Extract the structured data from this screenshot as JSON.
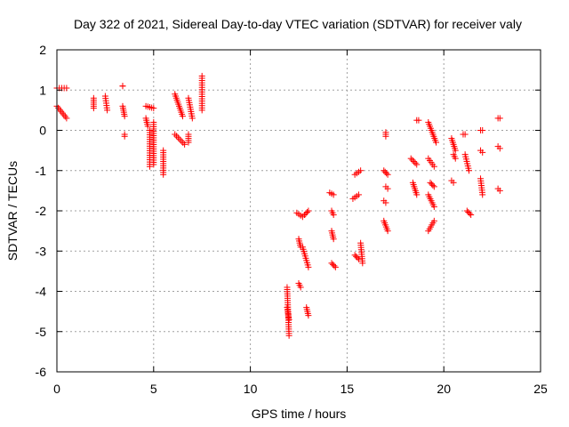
{
  "chart_data": {
    "type": "scatter",
    "title": "Day 322 of 2021, Sidereal Day-to-day VTEC variation (SDTVAR) for receiver valy",
    "xlabel": "GPS time / hours",
    "ylabel": "SDTVAR / TECUs",
    "xlim": [
      0,
      25
    ],
    "ylim": [
      -6,
      2
    ],
    "xticks": [
      "0",
      "5",
      "10",
      "15",
      "20",
      "25"
    ],
    "yticks": [
      "2",
      "1",
      "0",
      "-1",
      "-2",
      "-3",
      "-4",
      "-5",
      "-6"
    ],
    "grid": true,
    "marker": "+",
    "marker_color": "#ff0000",
    "segments": [
      {
        "x0": 0.0,
        "x1": 0.5,
        "y0": 1.05,
        "y1": 1.05
      },
      {
        "x0": 0.0,
        "x1": 0.5,
        "y0": 0.6,
        "y1": 0.3
      },
      {
        "x0": 1.9,
        "x1": 1.9,
        "y0": 0.8,
        "y1": 0.55
      },
      {
        "x0": 2.5,
        "x1": 2.6,
        "y0": 0.85,
        "y1": 0.5
      },
      {
        "x0": 3.4,
        "x1": 3.4,
        "y0": 1.1,
        "y1": 1.1
      },
      {
        "x0": 3.4,
        "x1": 3.5,
        "y0": 0.6,
        "y1": 0.35
      },
      {
        "x0": 3.5,
        "x1": 3.5,
        "y0": -0.1,
        "y1": -0.15
      },
      {
        "x0": 4.6,
        "x1": 5.0,
        "y0": 0.6,
        "y1": 0.55
      },
      {
        "x0": 4.8,
        "x1": 4.8,
        "y0": 0.0,
        "y1": -0.9
      },
      {
        "x0": 5.0,
        "x1": 5.0,
        "y0": 0.2,
        "y1": -0.85
      },
      {
        "x0": 4.6,
        "x1": 4.7,
        "y0": 0.3,
        "y1": 0.1
      },
      {
        "x0": 5.5,
        "x1": 5.5,
        "y0": -0.5,
        "y1": -1.1
      },
      {
        "x0": 6.1,
        "x1": 6.5,
        "y0": 0.9,
        "y1": 0.35
      },
      {
        "x0": 6.1,
        "x1": 6.6,
        "y0": -0.1,
        "y1": -0.35
      },
      {
        "x0": 6.8,
        "x1": 7.0,
        "y0": 0.8,
        "y1": 0.3
      },
      {
        "x0": 6.8,
        "x1": 6.8,
        "y0": -0.1,
        "y1": -0.3
      },
      {
        "x0": 7.5,
        "x1": 7.5,
        "y0": 1.35,
        "y1": 0.5
      },
      {
        "x0": 11.9,
        "x1": 12.0,
        "y0": -3.9,
        "y1": -5.1
      },
      {
        "x0": 11.9,
        "x1": 12.0,
        "y0": -4.4,
        "y1": -4.7
      },
      {
        "x0": 12.4,
        "x1": 12.7,
        "y0": -2.05,
        "y1": -2.15
      },
      {
        "x0": 12.5,
        "x1": 12.6,
        "y0": -2.7,
        "y1": -2.9
      },
      {
        "x0": 12.5,
        "x1": 12.6,
        "y0": -3.8,
        "y1": -3.9
      },
      {
        "x0": 12.8,
        "x1": 13.0,
        "y0": -2.1,
        "y1": -2.0
      },
      {
        "x0": 12.7,
        "x1": 13.0,
        "y0": -2.9,
        "y1": -3.4
      },
      {
        "x0": 12.9,
        "x1": 13.0,
        "y0": -4.4,
        "y1": -4.6
      },
      {
        "x0": 14.1,
        "x1": 14.3,
        "y0": -1.55,
        "y1": -1.6
      },
      {
        "x0": 14.2,
        "x1": 14.3,
        "y0": -2.0,
        "y1": -2.1
      },
      {
        "x0": 14.2,
        "x1": 14.3,
        "y0": -2.5,
        "y1": -2.7
      },
      {
        "x0": 14.2,
        "x1": 14.4,
        "y0": -3.3,
        "y1": -3.4
      },
      {
        "x0": 15.4,
        "x1": 15.7,
        "y0": -1.1,
        "y1": -1.0
      },
      {
        "x0": 15.3,
        "x1": 15.6,
        "y0": -1.7,
        "y1": -1.6
      },
      {
        "x0": 15.4,
        "x1": 15.6,
        "y0": -3.1,
        "y1": -3.2
      },
      {
        "x0": 15.7,
        "x1": 15.8,
        "y0": -2.8,
        "y1": -3.3
      },
      {
        "x0": 17.0,
        "x1": 17.0,
        "y0": -0.05,
        "y1": -0.15
      },
      {
        "x0": 16.9,
        "x1": 17.1,
        "y0": -1.0,
        "y1": -1.1
      },
      {
        "x0": 17.0,
        "x1": 17.1,
        "y0": -1.4,
        "y1": -1.45
      },
      {
        "x0": 16.9,
        "x1": 17.0,
        "y0": -1.75,
        "y1": -1.8
      },
      {
        "x0": 16.9,
        "x1": 17.1,
        "y0": -2.25,
        "y1": -2.5
      },
      {
        "x0": 18.3,
        "x1": 18.6,
        "y0": -0.7,
        "y1": -0.85
      },
      {
        "x0": 18.4,
        "x1": 18.6,
        "y0": -1.3,
        "y1": -1.6
      },
      {
        "x0": 18.6,
        "x1": 18.7,
        "y0": 0.25,
        "y1": 0.25
      },
      {
        "x0": 19.2,
        "x1": 19.6,
        "y0": 0.2,
        "y1": -0.3
      },
      {
        "x0": 19.2,
        "x1": 19.5,
        "y0": -0.7,
        "y1": -0.9
      },
      {
        "x0": 19.2,
        "x1": 19.5,
        "y0": -1.6,
        "y1": -1.9
      },
      {
        "x0": 19.2,
        "x1": 19.5,
        "y0": -2.5,
        "y1": -2.25
      },
      {
        "x0": 19.3,
        "x1": 19.5,
        "y0": -1.3,
        "y1": -1.4
      },
      {
        "x0": 20.4,
        "x1": 20.6,
        "y0": -0.2,
        "y1": -0.5
      },
      {
        "x0": 20.4,
        "x1": 20.5,
        "y0": -1.25,
        "y1": -1.3
      },
      {
        "x0": 20.5,
        "x1": 20.6,
        "y0": -0.6,
        "y1": -0.7
      },
      {
        "x0": 21.0,
        "x1": 21.1,
        "y0": -0.1,
        "y1": -0.1
      },
      {
        "x0": 21.1,
        "x1": 21.3,
        "y0": -0.6,
        "y1": -1.0
      },
      {
        "x0": 21.2,
        "x1": 21.4,
        "y0": -2.0,
        "y1": -2.1
      },
      {
        "x0": 21.9,
        "x1": 22.0,
        "y0": 0.0,
        "y1": 0.0
      },
      {
        "x0": 21.9,
        "x1": 22.0,
        "y0": -0.5,
        "y1": -0.55
      },
      {
        "x0": 21.9,
        "x1": 22.0,
        "y0": -1.2,
        "y1": -1.6
      },
      {
        "x0": 22.8,
        "x1": 22.9,
        "y0": 0.3,
        "y1": 0.3
      },
      {
        "x0": 22.8,
        "x1": 22.9,
        "y0": -0.4,
        "y1": -0.45
      },
      {
        "x0": 22.8,
        "x1": 22.9,
        "y0": -1.45,
        "y1": -1.5
      }
    ]
  }
}
